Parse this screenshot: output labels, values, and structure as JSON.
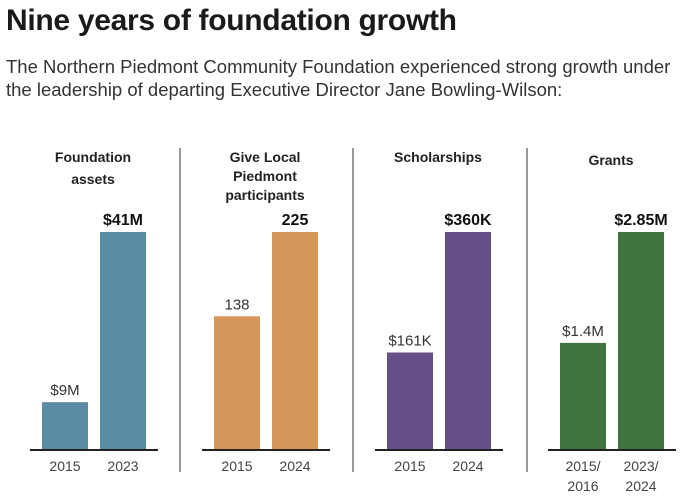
{
  "title": "Nine years of foundation growth",
  "subtitle": "The Northern Piedmont Community Foundation experienced strong growth under the leadership of departing Executive Director Jane Bowling-Wilson:",
  "chart_data": [
    {
      "type": "bar",
      "title": "Foundation assets",
      "categories": [
        "2015",
        "2023"
      ],
      "values": [
        9,
        41
      ],
      "unit": "$M",
      "labels": [
        "$9M",
        "$41M"
      ],
      "color": "#5b8aa3"
    },
    {
      "type": "bar",
      "title": "Give Local Piedmont participants",
      "categories": [
        "2015",
        "2024"
      ],
      "values": [
        138,
        225
      ],
      "labels": [
        "138",
        "225"
      ],
      "color": "#d79659"
    },
    {
      "type": "bar",
      "title": "Scholarships",
      "categories": [
        "2015",
        "2024"
      ],
      "values": [
        161,
        360
      ],
      "unit": "$K",
      "labels": [
        "$161K",
        "$360K"
      ],
      "color": "#664f86"
    },
    {
      "type": "bar",
      "title": "Grants",
      "categories": [
        "2015/ 2016",
        "2023/ 2024"
      ],
      "values": [
        1.4,
        2.85
      ],
      "unit": "$M",
      "labels": [
        "$1.4M",
        "$2.85M"
      ],
      "color": "#3f7440"
    }
  ]
}
